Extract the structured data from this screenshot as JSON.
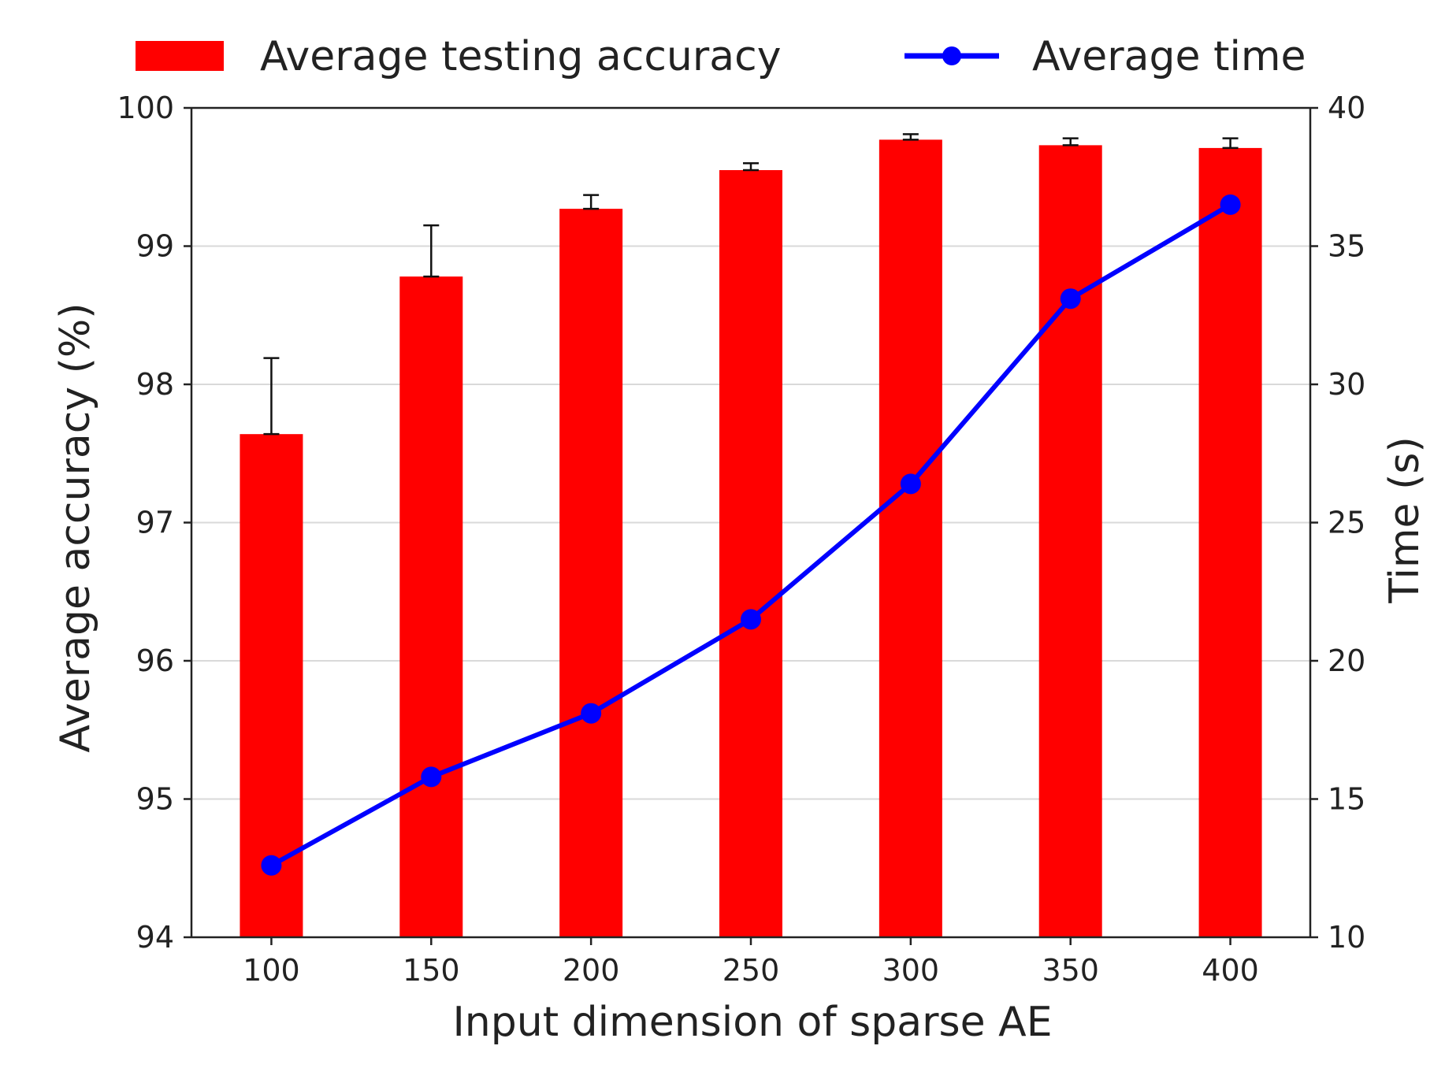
{
  "chart_data": {
    "type": "bar",
    "categories": [
      "100",
      "150",
      "200",
      "250",
      "300",
      "350",
      "400"
    ],
    "xlabel": "Input dimension of sparse AE",
    "series": [
      {
        "name": "Average testing accuracy",
        "type": "bar",
        "axis": "left",
        "color": "#ff0000",
        "values": [
          97.64,
          98.78,
          99.27,
          99.55,
          99.77,
          99.73,
          99.71
        ],
        "error_upper": [
          98.19,
          99.15,
          99.37,
          99.6,
          99.81,
          99.78,
          99.78
        ]
      },
      {
        "name": "Average time",
        "type": "line",
        "marker": "circle",
        "axis": "right",
        "color": "#0000ff",
        "values": [
          12.6,
          15.8,
          18.1,
          21.5,
          26.4,
          33.1,
          36.5
        ]
      }
    ],
    "y_left": {
      "label": "Average accuracy (%)",
      "ylim": [
        94,
        100
      ],
      "ticks": [
        "94",
        "95",
        "96",
        "97",
        "98",
        "99",
        "100"
      ]
    },
    "y_right": {
      "label": "Time (s)",
      "ylim": [
        10,
        40
      ],
      "ticks": [
        "10",
        "15",
        "20",
        "25",
        "30",
        "35",
        "40"
      ]
    },
    "grid": true,
    "legend_position": "top"
  }
}
